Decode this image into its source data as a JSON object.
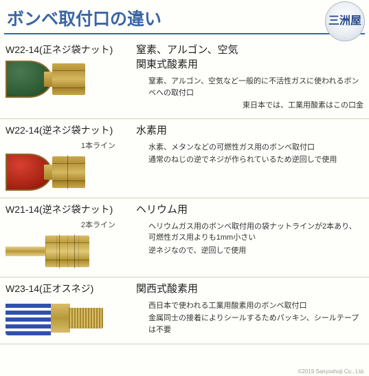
{
  "title": "ボンベ取付口の違い",
  "logo_text": "三洲屋",
  "copyright": "©2019 Sanyoshoji Co., Ltd.",
  "rows": [
    {
      "code": "W22-14(正ネジ袋ナット)",
      "note": "",
      "gas_line1": "窒素、アルゴン、空気",
      "gas_line2": "関東式酸素用",
      "desc1": "窒素、アルゴン、空気など一般的に不活性ガスに使われるボンベへの取付口",
      "desc2": "東日本では、工業用酸素はこの口金"
    },
    {
      "code": "W22-14(逆ネジ袋ナット)",
      "note": "1本ライン",
      "gas_line1": "水素用",
      "gas_line2": "",
      "desc1": "水素、メタンなどの可燃性ガス用のボンベ取付口",
      "desc2": "通常のねじの逆でネジが作られているため逆回しで使用"
    },
    {
      "code": "W21-14(逆ネジ袋ナット)",
      "note": "2本ライン",
      "gas_line1": "ヘリウム用",
      "gas_line2": "",
      "desc1": "ヘリウムガス用のボンベ取付用の袋ナットラインが2本あり、可燃性ガス用よりも1mm小さい",
      "desc2": "逆ネジなので、逆回しで使用"
    },
    {
      "code": "W23-14(正オスネジ)",
      "note": "",
      "gas_line1": "関西式酸素用",
      "gas_line2": "",
      "desc1": "西日本で使われる工業用酸素用のボンベ取付口",
      "desc2": "金属同士の接着によりシールするためパッキン、シールテープは不要"
    }
  ]
}
